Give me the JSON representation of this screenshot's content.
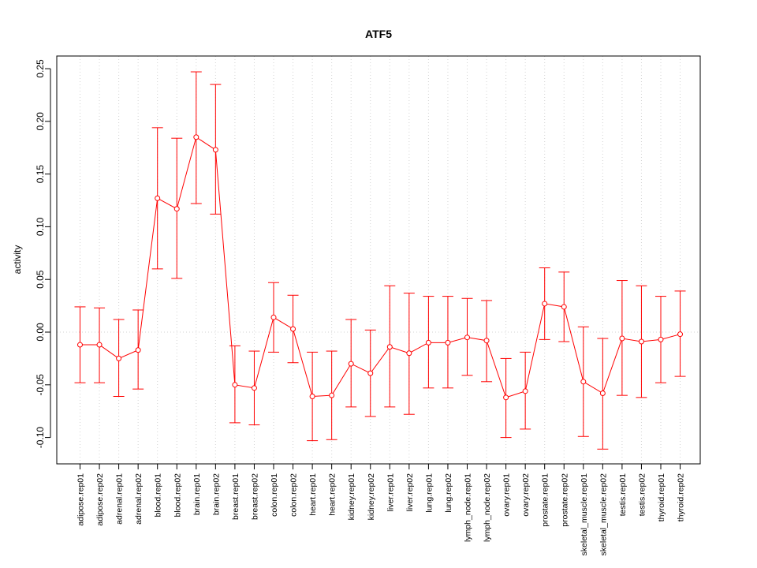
{
  "chart_data": {
    "type": "line",
    "title": "ATF5",
    "xlabel": "",
    "ylabel": "activity",
    "ylim": [
      -0.125,
      0.262
    ],
    "yticks": [
      -0.1,
      -0.05,
      0.0,
      0.05,
      0.1,
      0.15,
      0.2,
      0.25
    ],
    "ytick_labels": [
      "-0.10",
      "-0.05",
      "0.00",
      "0.05",
      "0.10",
      "0.15",
      "0.20",
      "0.25"
    ],
    "grid": true,
    "color": "#ff0000",
    "categories": [
      "adipose.rep01",
      "adipose.rep02",
      "adrenal.rep01",
      "adrenal.rep02",
      "blood.rep01",
      "blood.rep02",
      "brain.rep01",
      "brain.rep02",
      "breast.rep01",
      "breast.rep02",
      "colon.rep01",
      "colon.rep02",
      "heart.rep01",
      "heart.rep02",
      "kidney.rep01",
      "kidney.rep02",
      "liver.rep01",
      "liver.rep02",
      "lung.rep01",
      "lung.rep02",
      "lymph_node.rep01",
      "lymph_node.rep02",
      "ovary.rep01",
      "ovary.rep02",
      "prostate.rep01",
      "prostate.rep02",
      "skeletal_muscle.rep01",
      "skeletal_muscle.rep02",
      "testis.rep01",
      "testis.rep02",
      "thyroid.rep01",
      "thyroid.rep02"
    ],
    "values": [
      -0.012,
      -0.012,
      -0.025,
      -0.017,
      0.127,
      0.117,
      0.185,
      0.173,
      -0.05,
      -0.053,
      0.014,
      0.003,
      -0.061,
      -0.06,
      -0.03,
      -0.039,
      -0.014,
      -0.02,
      -0.01,
      -0.01,
      -0.005,
      -0.008,
      -0.062,
      -0.056,
      0.027,
      0.024,
      -0.047,
      -0.058,
      -0.006,
      -0.009,
      -0.007,
      -0.002
    ],
    "lower": [
      -0.048,
      -0.048,
      -0.061,
      -0.054,
      0.06,
      0.051,
      0.122,
      0.112,
      -0.086,
      -0.088,
      -0.019,
      -0.029,
      -0.103,
      -0.102,
      -0.071,
      -0.08,
      -0.071,
      -0.078,
      -0.053,
      -0.053,
      -0.041,
      -0.047,
      -0.1,
      -0.092,
      -0.007,
      -0.009,
      -0.099,
      -0.111,
      -0.06,
      -0.062,
      -0.048,
      -0.042
    ],
    "upper": [
      0.024,
      0.023,
      0.012,
      0.021,
      0.194,
      0.184,
      0.247,
      0.235,
      -0.013,
      -0.018,
      0.047,
      0.035,
      -0.019,
      -0.018,
      0.012,
      0.002,
      0.044,
      0.037,
      0.034,
      0.034,
      0.032,
      0.03,
      -0.025,
      -0.019,
      0.061,
      0.057,
      0.005,
      -0.006,
      0.049,
      0.044,
      0.034,
      0.039
    ]
  }
}
